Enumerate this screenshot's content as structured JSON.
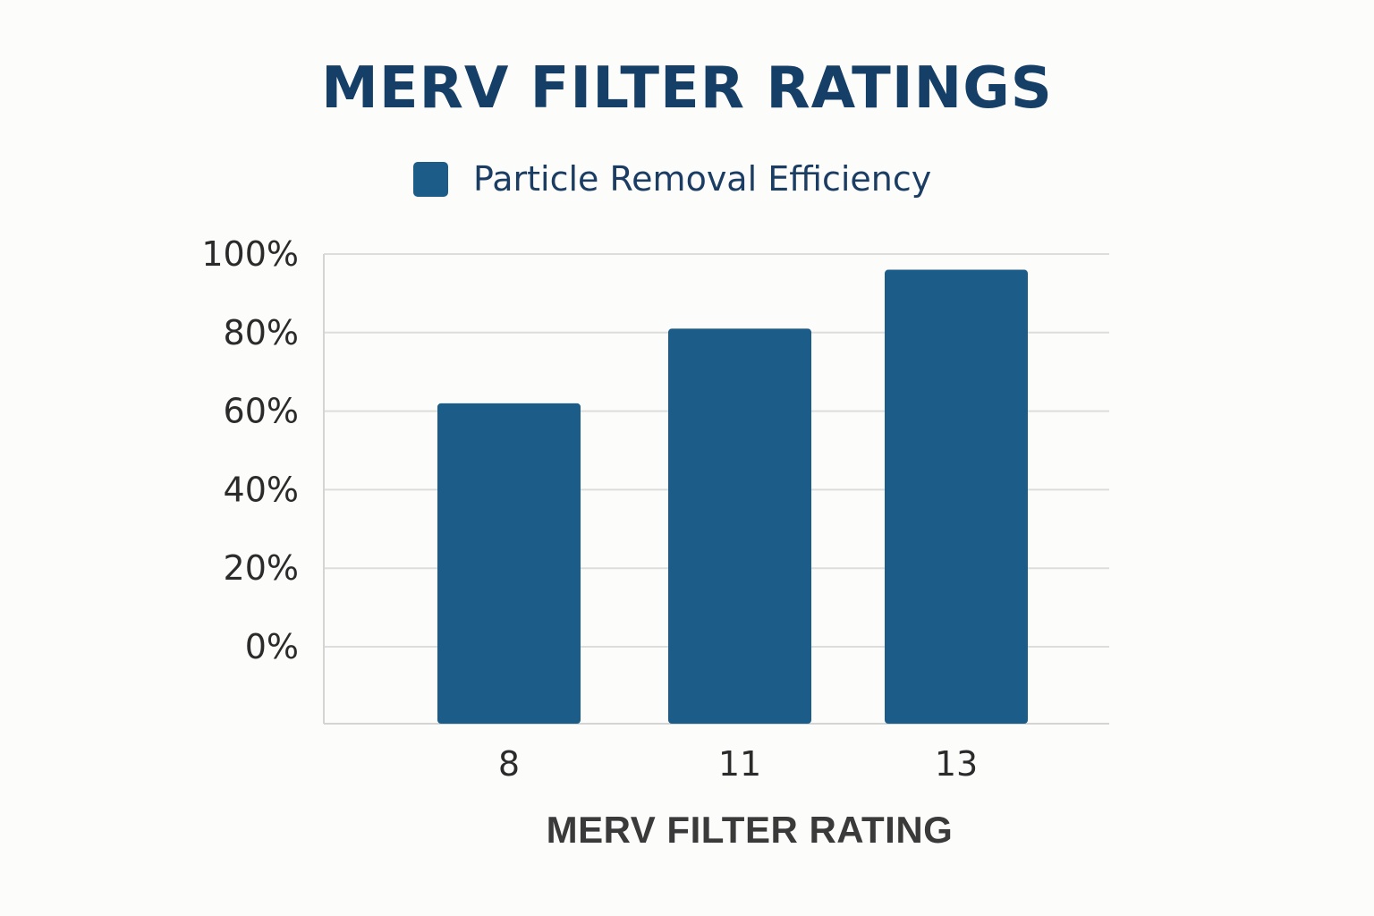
{
  "chart_data": {
    "type": "bar",
    "title": "MERV FILTER RATINGS",
    "xlabel": "MERV FILTER RATING",
    "ylabel": "",
    "categories": [
      "8",
      "11",
      "13"
    ],
    "series": [
      {
        "name": "Particle Removal Efficiency",
        "values": [
          62,
          81,
          96
        ]
      }
    ],
    "ylim": [
      0,
      100
    ],
    "y_ticks": [
      "100%",
      "80%",
      "60%",
      "40%",
      "20%",
      "0%"
    ],
    "grid": true,
    "legend": "top-center",
    "colors": {
      "bar": "#1b5d88",
      "title": "#153f66",
      "grid": "#dddddd"
    }
  }
}
